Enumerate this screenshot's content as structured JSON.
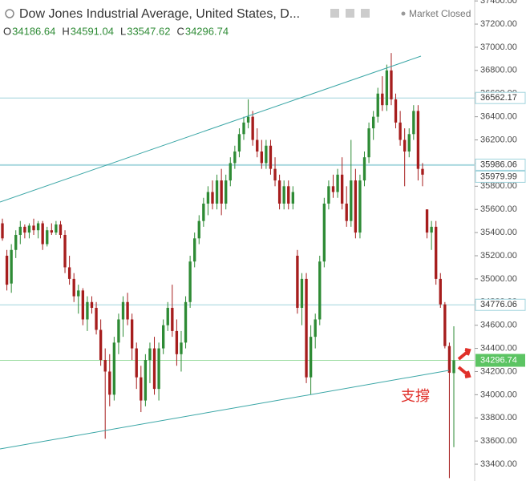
{
  "header": {
    "title": "Dow Jones Industrial Average, United States, D...",
    "status": "Market Closed",
    "ohlc_letters": [
      "O",
      "H",
      "L",
      "C"
    ],
    "ohlc_values": [
      34186.64,
      34591.04,
      33547.62,
      34296.74
    ]
  },
  "chart_data": {
    "type": "candlestick",
    "up_color": "#2e8b35",
    "down_color": "#a61d1d",
    "ylim": [
      33255,
      37408
    ],
    "yticks": [
      {
        "value": 33400,
        "label": "33400.00"
      },
      {
        "value": 33600,
        "label": "33600.00"
      },
      {
        "value": 33800,
        "label": "33800.00"
      },
      {
        "value": 34000,
        "label": "34000.00"
      },
      {
        "value": 34200,
        "label": "34200.00"
      },
      {
        "value": 34400,
        "label": "34400.00"
      },
      {
        "value": 34600,
        "label": "34600.00"
      },
      {
        "value": 34800,
        "label": "34800.00"
      },
      {
        "value": 35000,
        "label": "35000.00"
      },
      {
        "value": 35200,
        "label": "35200.00"
      },
      {
        "value": 35400,
        "label": "35400.00"
      },
      {
        "value": 35600,
        "label": "35600.00"
      },
      {
        "value": 35800,
        "label": "35800.00"
      },
      {
        "value": 36000,
        "label": "36000.00"
      },
      {
        "value": 36200,
        "label": "36200.00"
      },
      {
        "value": 36400,
        "label": "36400.00"
      },
      {
        "value": 36600,
        "label": "36600.00"
      },
      {
        "value": 36800,
        "label": "36800.00"
      },
      {
        "value": 37000,
        "label": "37000.00"
      },
      {
        "value": 37200,
        "label": "37200.00"
      },
      {
        "value": 37400,
        "label": "37400.00"
      }
    ],
    "price_lines": [
      36562.17,
      35986.06,
      35979.99,
      34776.06
    ],
    "price_line_color": "#9fd3dc",
    "last_price": 34296.74,
    "last_price_color": "#5cc463",
    "annotation": "支撐",
    "annotation_color": "#e0302a",
    "series": [
      {
        "open": [
          35480,
          35200,
          34960,
          35250,
          35380,
          35450,
          35400,
          35460,
          35420,
          35480,
          35300,
          35420,
          35400,
          35470,
          35380,
          35100,
          35000,
          34850,
          34900,
          34650,
          34800,
          34750,
          34560,
          34300,
          34200,
          34000,
          34450,
          34650,
          34800,
          34650,
          34400,
          34150,
          33950,
          34300,
          34400,
          34050,
          34400,
          34600,
          34750,
          34550,
          34350,
          34450,
          34800,
          35150,
          35350,
          35500,
          35650,
          35750,
          35650,
          35850,
          35650,
          35850,
          36000,
          36100,
          36250,
          36350,
          36400,
          36200,
          36100,
          36000,
          36150,
          35950,
          35850,
          35650,
          35800,
          35650,
          35200,
          34750,
          35000,
          34150,
          34500,
          34650,
          35150,
          35650,
          35800,
          35750,
          35900,
          35650,
          35500,
          35850,
          35400,
          35850,
          36050,
          36300,
          36400,
          36600,
          36500,
          36800,
          36550,
          36350,
          36200,
          36100,
          36250,
          36450,
          35950,
          35600,
          35400,
          35450,
          35000,
          34780,
          34420,
          34186.64
        ],
        "high": [
          35520,
          35250,
          35300,
          35420,
          35500,
          35470,
          35480,
          35520,
          35500,
          35500,
          35450,
          35480,
          35500,
          35500,
          35420,
          35200,
          35050,
          34950,
          34920,
          34850,
          34850,
          34800,
          34650,
          34400,
          34350,
          34500,
          34700,
          34850,
          34880,
          34700,
          34450,
          34250,
          34350,
          34450,
          34500,
          34450,
          34650,
          34800,
          34950,
          34650,
          34550,
          34850,
          35200,
          35400,
          35550,
          35700,
          35800,
          35850,
          35900,
          35950,
          35900,
          36050,
          36150,
          36300,
          36400,
          36550,
          36450,
          36300,
          36200,
          36200,
          36200,
          36050,
          35900,
          35850,
          35850,
          35800,
          35250,
          35050,
          35050,
          34600,
          34700,
          35200,
          35700,
          35850,
          35900,
          35950,
          36050,
          35800,
          36200,
          35950,
          35900,
          36100,
          36350,
          36450,
          36650,
          36750,
          36850,
          36950,
          36600,
          36450,
          36300,
          36300,
          36500,
          36500,
          36000,
          35600,
          35500,
          35500,
          35050,
          34800,
          34450,
          34591.04
        ],
        "low": [
          35330,
          34900,
          34880,
          35180,
          35300,
          35350,
          35350,
          35380,
          35350,
          35250,
          35280,
          35380,
          35380,
          35350,
          35050,
          34950,
          34800,
          34700,
          34600,
          34550,
          34700,
          34520,
          34250,
          33620,
          33900,
          33950,
          34350,
          34500,
          34600,
          34300,
          34050,
          33850,
          33900,
          34100,
          34000,
          33950,
          34350,
          34550,
          34500,
          34250,
          34200,
          34400,
          34750,
          35100,
          35300,
          35450,
          35550,
          35600,
          35600,
          35550,
          35600,
          35800,
          35950,
          36050,
          36200,
          36300,
          36150,
          36050,
          35950,
          35950,
          35900,
          35800,
          35600,
          35600,
          35600,
          35600,
          34700,
          34600,
          34100,
          34000,
          34400,
          34600,
          35100,
          35600,
          35700,
          35700,
          35600,
          35450,
          35450,
          35350,
          35350,
          35800,
          36000,
          36200,
          36350,
          36450,
          36450,
          36500,
          36300,
          36150,
          35800,
          36050,
          36200,
          35850,
          35800,
          35350,
          35250,
          34950,
          34750,
          34400,
          33280,
          33547.62
        ],
        "close": [
          35350,
          34950,
          35250,
          35380,
          35450,
          35400,
          35460,
          35420,
          35480,
          35300,
          35420,
          35400,
          35470,
          35380,
          35100,
          35000,
          34850,
          34900,
          34650,
          34800,
          34750,
          34560,
          34300,
          34200,
          34000,
          34450,
          34650,
          34800,
          34650,
          34400,
          34150,
          33950,
          34300,
          34400,
          34050,
          34400,
          34600,
          34750,
          34550,
          34350,
          34450,
          34800,
          35150,
          35350,
          35500,
          35650,
          35750,
          35650,
          35850,
          35650,
          35850,
          36000,
          36100,
          36250,
          36350,
          36400,
          36200,
          36100,
          36000,
          36150,
          35950,
          35850,
          35650,
          35800,
          35650,
          35750,
          34750,
          35000,
          34150,
          34500,
          34650,
          35150,
          35650,
          35800,
          35750,
          35900,
          35650,
          35500,
          35850,
          35400,
          35850,
          36050,
          36300,
          36400,
          36600,
          36500,
          36800,
          36550,
          36350,
          36200,
          36100,
          36250,
          36450,
          35950,
          35900,
          35400,
          35450,
          35000,
          34780,
          34420,
          34190,
          34296.74
        ]
      }
    ]
  }
}
